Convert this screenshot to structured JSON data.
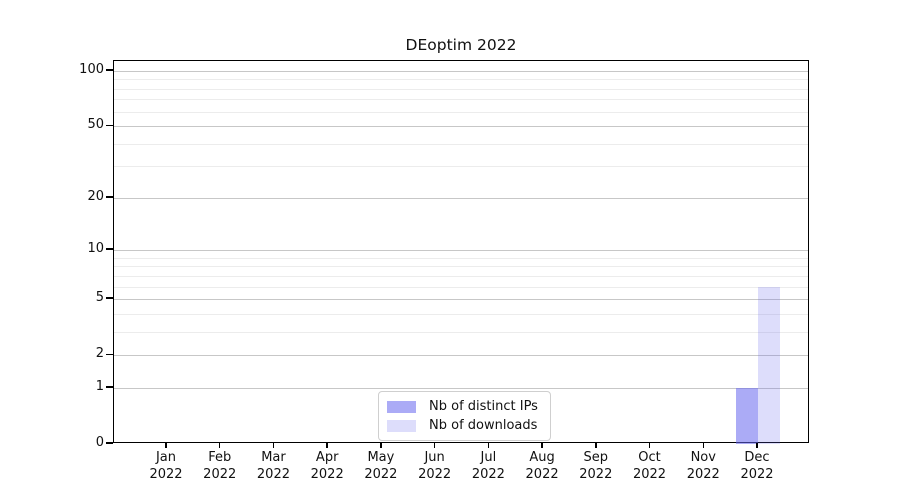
{
  "title": "DEoptim 2022",
  "chart_data": {
    "type": "bar",
    "title": "DEoptim 2022",
    "categories": [
      "Jan",
      "Feb",
      "Mar",
      "Apr",
      "May",
      "Jun",
      "Jul",
      "Aug",
      "Sep",
      "Oct",
      "Nov",
      "Dec"
    ],
    "year": "2022",
    "series": [
      {
        "name": "Nb of distinct IPs",
        "color": "rgba(102,102,238,0.55)",
        "values": [
          0,
          0,
          0,
          0,
          0,
          0,
          0,
          0,
          0,
          0,
          0,
          1
        ]
      },
      {
        "name": "Nb of downloads",
        "color": "rgba(102,102,238,0.22)",
        "values": [
          0,
          0,
          0,
          0,
          0,
          0,
          0,
          0,
          0,
          0,
          0,
          6
        ]
      }
    ],
    "xlabel": "",
    "ylabel": "",
    "y_axis": {
      "scale": "log1p",
      "tick_values": [
        0,
        1,
        2,
        5,
        10,
        20,
        50,
        100
      ],
      "tick_labels": [
        "0",
        "1",
        "2",
        "5",
        "10",
        "20",
        "50",
        "100"
      ],
      "minor_gridlines": [
        3,
        4,
        6,
        7,
        8,
        9,
        30,
        40,
        60,
        70,
        80,
        90
      ],
      "ylim": [
        0,
        112
      ]
    },
    "grid": "horizontal",
    "legend_position": "bottom-center",
    "colors": {
      "major_grid": "#c7c7c7",
      "minor_grid": "#ececec",
      "spine": "#000000",
      "background": "#ffffff",
      "text": "#111111"
    }
  }
}
